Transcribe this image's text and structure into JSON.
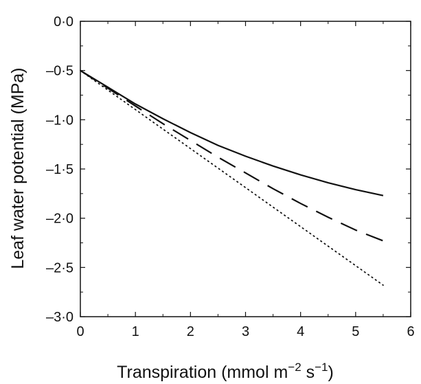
{
  "chart_data": {
    "type": "line",
    "xlabel": "Transpiration (mmol m",
    "xlabel_sup1": "−2",
    "xlabel_mid": " s",
    "xlabel_sup2": "−1",
    "xlabel_end": ")",
    "ylabel": "Leaf water potential (MPa)",
    "xlim": [
      0,
      6
    ],
    "ylim": [
      -3.0,
      0.0
    ],
    "x_ticks": [
      0,
      1,
      2,
      3,
      4,
      5,
      6
    ],
    "x_tick_labels": [
      "0",
      "1",
      "2",
      "3",
      "4",
      "5",
      "6"
    ],
    "y_ticks": [
      0.0,
      -0.5,
      -1.0,
      -1.5,
      -2.0,
      -2.5,
      -3.0
    ],
    "y_tick_labels": [
      "0·0",
      "–0·5",
      "–1·0",
      "–1·5",
      "–2·0",
      "–2·5",
      "–3·0"
    ],
    "grid": false,
    "series": [
      {
        "style": "solid",
        "color": "#111111",
        "x": [
          0,
          0.5,
          1.0,
          1.5,
          2.0,
          2.5,
          3.0,
          3.5,
          4.0,
          4.5,
          5.0,
          5.5
        ],
        "y": [
          -0.5,
          -0.67,
          -0.84,
          -0.99,
          -1.13,
          -1.26,
          -1.37,
          -1.47,
          -1.56,
          -1.64,
          -1.71,
          -1.77
        ]
      },
      {
        "style": "dashed",
        "color": "#111111",
        "x": [
          0,
          0.5,
          1.0,
          1.5,
          2.0,
          2.5,
          3.0,
          3.5,
          4.0,
          4.5,
          5.0,
          5.5
        ],
        "y": [
          -0.5,
          -0.68,
          -0.86,
          -1.04,
          -1.21,
          -1.38,
          -1.54,
          -1.7,
          -1.85,
          -1.99,
          -2.12,
          -2.23
        ]
      },
      {
        "style": "dotted",
        "color": "#111111",
        "x": [
          0,
          5.5
        ],
        "y": [
          -0.5,
          -2.68
        ]
      }
    ]
  }
}
